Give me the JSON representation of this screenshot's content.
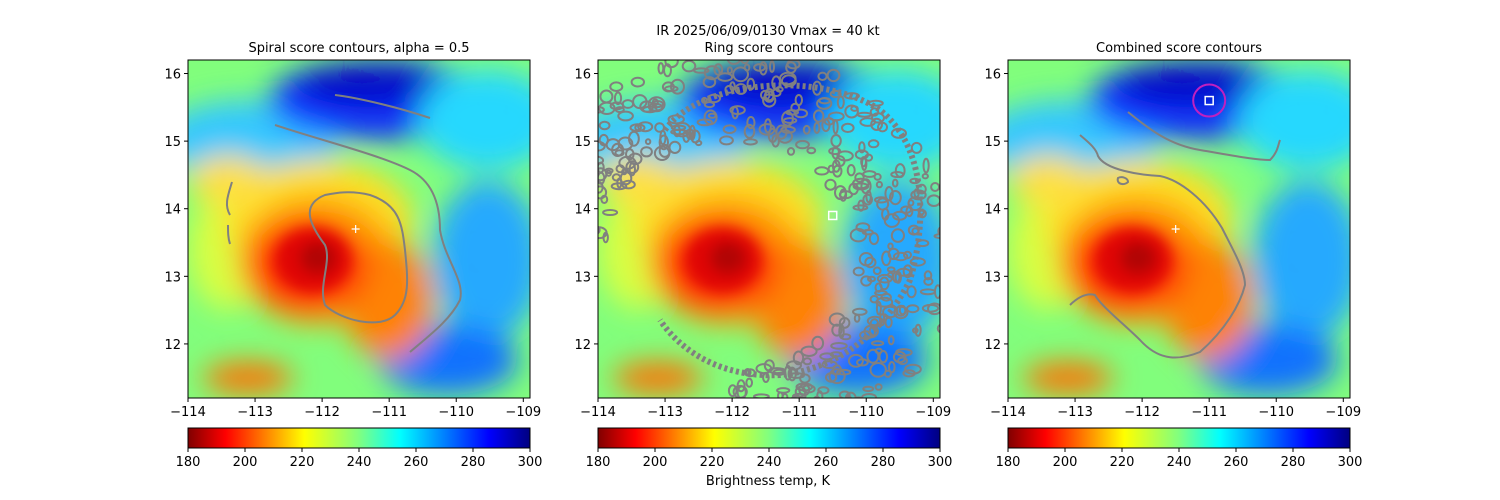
{
  "figure": {
    "suptitle_line1": "IR  2025/06/09/0130    Vmax = 40 kt",
    "colorbar_label": "Brightness temp, K",
    "colormap": "jet (reversed): dark red = cold 180 K, dark blue = warm 300 K"
  },
  "chart_data": [
    {
      "type": "heatmap",
      "title": "Spiral score contours, alpha =  0.5",
      "xlim": [
        -114,
        -108.9
      ],
      "ylim": [
        11.2,
        16.2
      ],
      "xticks": [
        "−114",
        "−113",
        "−112",
        "−111",
        "−110",
        "−109"
      ],
      "yticks": [
        "12",
        "13",
        "14",
        "15",
        "16"
      ],
      "colorbar": {
        "min": 180,
        "max": 300,
        "ticks": [
          "180",
          "200",
          "220",
          "240",
          "260",
          "280",
          "300"
        ]
      },
      "marker": {
        "symbol": "+",
        "lon": -111.5,
        "lat": 13.7,
        "color": "#ffffff"
      },
      "contour_color": "#808080"
    },
    {
      "type": "heatmap",
      "title": "Ring score contours",
      "xlim": [
        -114,
        -108.9
      ],
      "ylim": [
        11.2,
        16.2
      ],
      "xticks": [
        "−114",
        "−113",
        "−112",
        "−111",
        "−110",
        "−109"
      ],
      "yticks": [
        "12",
        "13",
        "14",
        "15",
        "16"
      ],
      "colorbar": {
        "min": 180,
        "max": 300,
        "ticks": [
          "180",
          "200",
          "220",
          "240",
          "260",
          "280",
          "300"
        ]
      },
      "marker": {
        "symbol": "square",
        "lon": -110.5,
        "lat": 13.9,
        "color": "#ffffff"
      },
      "contour_color": "#808080"
    },
    {
      "type": "heatmap",
      "title": "Combined score contours",
      "xlim": [
        -114,
        -108.9
      ],
      "ylim": [
        11.2,
        16.2
      ],
      "xticks": [
        "−114",
        "−113",
        "−112",
        "−111",
        "−110",
        "−109"
      ],
      "yticks": [
        "12",
        "13",
        "14",
        "15",
        "16"
      ],
      "colorbar": {
        "min": 180,
        "max": 300,
        "ticks": [
          "180",
          "200",
          "220",
          "240",
          "260",
          "280",
          "300"
        ]
      },
      "markers": [
        {
          "symbol": "+",
          "lon": -111.5,
          "lat": 13.7,
          "color": "#ffffff"
        },
        {
          "symbol": "square",
          "lon": -111.0,
          "lat": 15.6,
          "color": "#ffffff"
        },
        {
          "symbol": "circle",
          "lon": -111.0,
          "lat": 15.6,
          "color": "#c020c0"
        }
      ],
      "contour_color": "#808080"
    }
  ]
}
